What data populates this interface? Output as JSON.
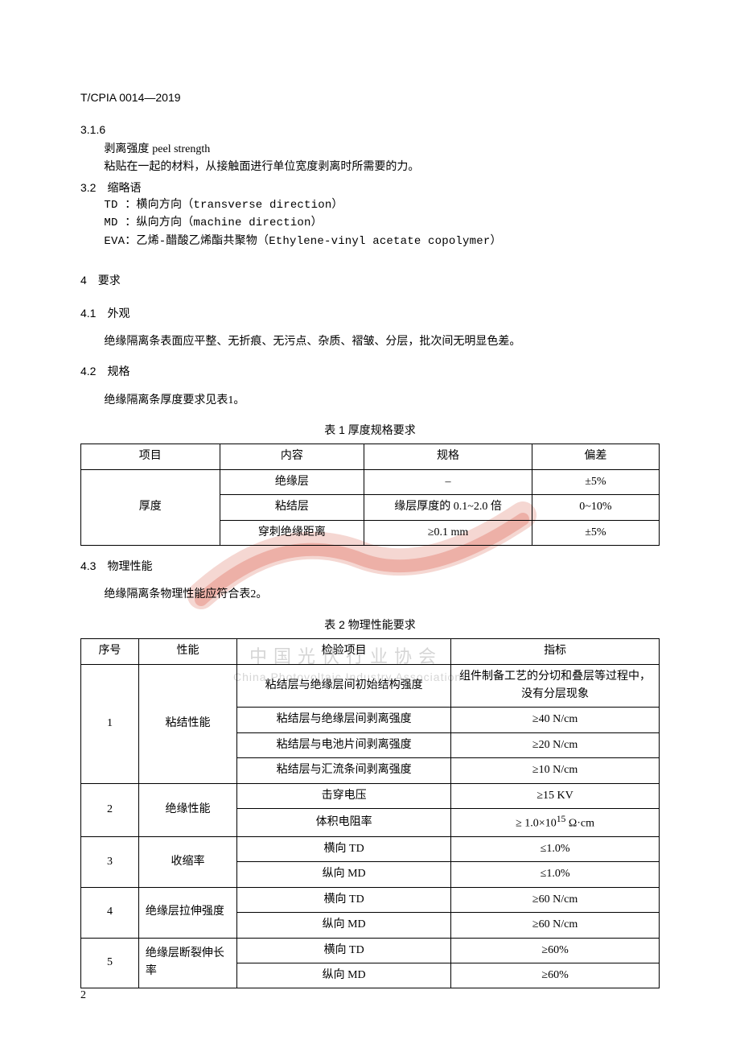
{
  "header_code": "T/CPIA 0014—2019",
  "c316_num": "3.1.6",
  "c316_term_cn": "剥离强度",
  "c316_term_en": "peel strength",
  "c316_body": "粘贴在一起的材料，从接触面进行单位宽度剥离时所需要的力。",
  "c32_h": "3.2　缩略语",
  "abbr_td": "TD ：横向方向（transverse direction）",
  "abbr_md": "MD ：纵向方向（machine direction）",
  "abbr_eva": "EVA：乙烯-醋酸乙烯酯共聚物（Ethylene-vinyl acetate copolymer）",
  "c4_h": "4　要求",
  "c41_h": "4.1　外观",
  "c41_body": "绝缘隔离条表面应平整、无折痕、无污点、杂质、褶皱、分层，批次间无明显色差。",
  "c42_h": "4.2　规格",
  "c42_body": "绝缘隔离条厚度要求见表1。",
  "t1_caption": "表 1  厚度规格要求",
  "t1": {
    "h1": "项目",
    "h2": "内容",
    "h3": "规格",
    "h4": "偏差",
    "r1c1": "厚度",
    "r1c2": "绝缘层",
    "r1c3": "–",
    "r1c4": "±5%",
    "r2c2": "粘结层",
    "r2c3": "缘层厚度的 0.1~2.0 倍",
    "r2c4": "0~10%",
    "r3c2": "穿刺绝缘距离",
    "r3c3": "≥0.1 mm",
    "r3c4": "±5%"
  },
  "c43_h": "4.3　物理性能",
  "c43_body": "绝缘隔离条物理性能应符合表2。",
  "t2_caption": "表 2  物理性能要求",
  "t2": {
    "h1": "序号",
    "h2": "性能",
    "h3": "检验项目",
    "h4": "指标",
    "g1_no": "1",
    "g1_prop": "粘结性能",
    "g1r1c3": "粘结层与绝缘层间初始结构强度",
    "g1r1c4": "组件制备工艺的分切和叠层等过程中，没有分层现象",
    "g1r2c3": "粘结层与绝缘层间剥离强度",
    "g1r2c4": "≥40 N/cm",
    "g1r3c3": "粘结层与电池片间剥离强度",
    "g1r3c4": "≥20 N/cm",
    "g1r4c3": "粘结层与汇流条间剥离强度",
    "g1r4c4": "≥10 N/cm",
    "g2_no": "2",
    "g2_prop": "绝缘性能",
    "g2r1c3": "击穿电压",
    "g2r1c4": "≥15 KV",
    "g2r2c3": "体积电阻率",
    "g2r2c4_html": "≥ 1.0×10<sup>15</sup> Ω·cm",
    "g3_no": "3",
    "g3_prop": "收缩率",
    "g3r1c3": "横向 TD",
    "g3r1c4": "≤1.0%",
    "g3r2c3": "纵向 MD",
    "g3r2c4": "≤1.0%",
    "g4_no": "4",
    "g4_prop": "绝缘层拉伸强度",
    "g4r1c3": "横向 TD",
    "g4r1c4": "≥60 N/cm",
    "g4r2c3": "纵向 MD",
    "g4r2c4": "≥60 N/cm",
    "g5_no": "5",
    "g5_prop": "绝缘层断裂伸长率",
    "g5r1c3": "横向 TD",
    "g5r1c4": "≥60%",
    "g5r2c3": "纵向 MD",
    "g5r2c4": "≥60%"
  },
  "page_num": "2",
  "wm_cn": "中国光伏行业协会",
  "wm_en": "China Photovoltaic Industry Association",
  "colors": {
    "text": "#000000",
    "bg": "#ffffff",
    "border": "#000000",
    "wm_gray": "#c0c0c0",
    "wm_red1": "#d94a3a",
    "wm_red2": "#f6e9e6"
  }
}
